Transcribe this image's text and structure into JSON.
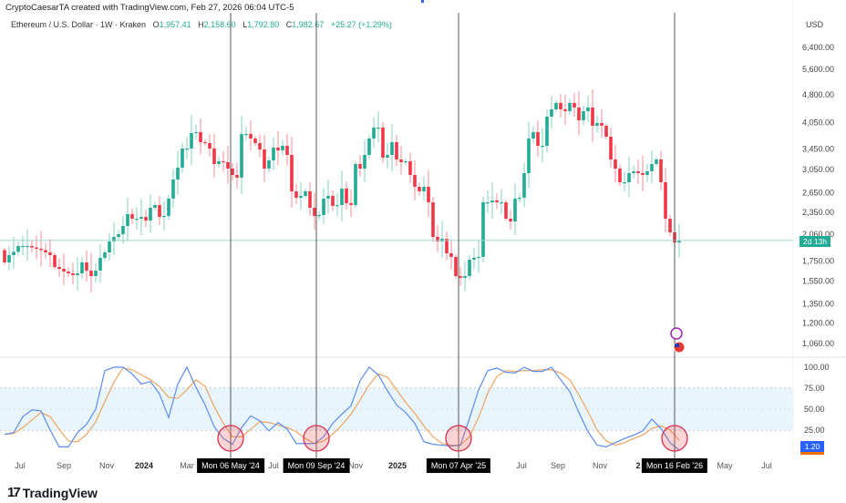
{
  "header": {
    "credit": "CryptoCaesarTA created with TradingView.com, Feb 27, 2026 06:04 UTC-5",
    "symbol": "Ethereum / U.S. Dollar · 1W · Kraken",
    "ohlc": {
      "o_label": "O",
      "o": "1,957.41",
      "h_label": "H",
      "h": "2,158.60",
      "l_label": "L",
      "l": "1,792.80",
      "c_label": "C",
      "c": "1,982.67",
      "change": "+25.27 (+1.29%)"
    }
  },
  "footer": {
    "logo_text": "TradingView"
  },
  "colors": {
    "up": "#22ab94",
    "down": "#f23645",
    "k_line": "#5b8def",
    "d_line": "#f0a35e",
    "band": "#e3f2fd",
    "marker": "#d32f4f"
  },
  "chart_data": [
    {
      "type": "candlestick",
      "scale": "log",
      "currency_label": "USD",
      "y_ticks": [
        "6,400.00",
        "5,600.00",
        "4,800.00",
        "4,050.00",
        "3,450.00",
        "3,050.00",
        "2,650.00",
        "2,350.00",
        "2,060.00",
        "1,750.00",
        "1,550.00",
        "1,350.00",
        "1,200.00",
        "1,060.00"
      ],
      "y_tick_values": [
        6400,
        5600,
        4800,
        4050,
        3450,
        3050,
        2650,
        2350,
        2060,
        1750,
        1550,
        1350,
        1200,
        1060
      ],
      "ylim": [
        1000,
        7000
      ],
      "first_open": 1870,
      "closes": [
        1735,
        1814,
        1850,
        1917,
        1917,
        1917,
        1900,
        1885,
        1870,
        1844,
        1814,
        1688,
        1669,
        1642,
        1624,
        1606,
        1624,
        1735,
        1651,
        1597,
        1651,
        1784,
        1844,
        1970,
        2026,
        2060,
        2165,
        2326,
        2262,
        2262,
        2287,
        2237,
        2418,
        2458,
        2287,
        2300,
        2556,
        2870,
        3084,
        3464,
        3464,
        3805,
        3826,
        3601,
        3581,
        3464,
        3153,
        3206,
        3188,
        3067,
        2950,
        2902,
        3784,
        3784,
        3681,
        3581,
        3444,
        3067,
        3224,
        3483,
        3426,
        3522,
        3332,
        2671,
        2570,
        2598,
        2671,
        2418,
        2300,
        2313,
        2556,
        2598,
        2445,
        2458,
        2716,
        2486,
        2458,
        3153,
        3067,
        3332,
        3681,
        3933,
        3933,
        3277,
        3332,
        3601,
        3241,
        3188,
        3206,
        2950,
        2746,
        2671,
        2746,
        2499,
        2026,
        1970,
        2003,
        1834,
        1794,
        1597,
        1580,
        1597,
        1764,
        1784,
        1794,
        2499,
        2499,
        2528,
        2499,
        2499,
        2262,
        2225,
        2556,
        2570,
        2983,
        3681,
        3826,
        3522,
        3522,
        4204,
        4394,
        4568,
        4394,
        4345,
        4568,
        4443,
        4111,
        4345,
        4443,
        3977,
        4044,
        3977,
        3722,
        3241,
        3067,
        2823,
        2823,
        2983,
        3016,
        2983,
        2950,
        3016,
        3153,
        3241,
        2823,
        2262,
        2083,
        1957,
        1982.67
      ],
      "last_price": 1982.67,
      "countdown": "2d 13h"
    },
    {
      "type": "line",
      "indicator": "Stochastic RSI",
      "y_ticks": [
        "100.00",
        "75.00",
        "50.00",
        "25.00"
      ],
      "y_tick_values": [
        100,
        75,
        50,
        25
      ],
      "band": [
        25,
        75
      ],
      "ylim": [
        0,
        100
      ],
      "series": [
        {
          "values": [
            20,
            22,
            41,
            49,
            48,
            25,
            5,
            5,
            22,
            32,
            50,
            96,
            100,
            100,
            92,
            80,
            83,
            68,
            40,
            80,
            100,
            76,
            55,
            29,
            15,
            8,
            28,
            42,
            36,
            24,
            34,
            26,
            9,
            9,
            9,
            17,
            33,
            44,
            54,
            84,
            100,
            91,
            72,
            55,
            46,
            33,
            11,
            8,
            7,
            6,
            7,
            39,
            73,
            96,
            99,
            94,
            93,
            100,
            95,
            95,
            100,
            85,
            71,
            46,
            23,
            7,
            5,
            10,
            15,
            19,
            24,
            38,
            27,
            10,
            1.2
          ]
        },
        {
          "values": [
            20,
            21,
            28,
            37,
            46,
            41,
            26,
            12,
            11,
            20,
            35,
            59,
            82,
            99,
            97,
            91,
            85,
            77,
            64,
            63,
            73,
            85,
            77,
            53,
            33,
            17,
            17,
            26,
            35,
            34,
            31,
            28,
            23,
            15,
            9,
            12,
            20,
            31,
            44,
            61,
            79,
            92,
            88,
            73,
            58,
            45,
            30,
            17,
            9,
            7,
            7,
            17,
            40,
            69,
            89,
            96,
            95,
            96,
            96,
            97,
            97,
            93,
            85,
            67,
            47,
            25,
            12,
            7,
            10,
            15,
            19,
            27,
            30,
            25,
            13
          ]
        }
      ],
      "last_value_label": "1.20"
    }
  ],
  "x_axis": {
    "labels": [
      {
        "text": "Jul",
        "bold": false
      },
      {
        "text": "Sep",
        "bold": false
      },
      {
        "text": "Nov",
        "bold": false
      },
      {
        "text": "2024",
        "bold": true
      },
      {
        "text": "Mar",
        "bold": false
      },
      {
        "text": "Jul",
        "bold": false
      },
      {
        "text": "Nov",
        "bold": false
      },
      {
        "text": "2025",
        "bold": true
      },
      {
        "text": "Jul",
        "bold": false
      },
      {
        "text": "Sep",
        "bold": false
      },
      {
        "text": "Nov",
        "bold": false
      },
      {
        "text": "2",
        "bold": true
      },
      {
        "text": "May",
        "bold": false
      },
      {
        "text": "Jul",
        "bold": false
      }
    ]
  },
  "markers": [
    {
      "date_label": "Mon 06 May '24"
    },
    {
      "date_label": "Mon 09 Sep '24"
    },
    {
      "date_label": "Mon 07 Apr '25"
    },
    {
      "date_label": "Mon 16 Feb '26"
    }
  ]
}
